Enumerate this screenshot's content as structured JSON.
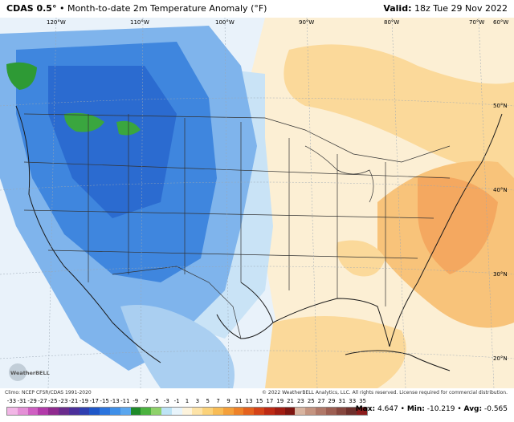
{
  "header": {
    "model": "CDAS 0.5°",
    "separator": "•",
    "product": "Month-to-date 2m Temperature Anomaly (°F)",
    "valid_label": "Valid:",
    "valid_time": "18z Tue 29 Nov 2022"
  },
  "longitude_labels": [
    "120°W",
    "110°W",
    "100°W",
    "90°W",
    "80°W",
    "70°W",
    "60°W"
  ],
  "latitude_labels": [
    "50°N",
    "40°N",
    "30°N",
    "20°N"
  ],
  "credits": {
    "climo": "Climo: NCEP CFSR/CDAS 1991-2020",
    "copyright": "© 2022 WeatherBELL Analytics, LLC. All rights reserved. License required for commercial distribution.",
    "logo_text": "WeatherBELL"
  },
  "colorbar": {
    "labels": [
      "-33",
      "-31",
      "-29",
      "-27",
      "-25",
      "-23",
      "-21",
      "-19",
      "-17",
      "-15",
      "-13",
      "-11",
      "-9",
      "-7",
      "-5",
      "-3",
      "-1",
      "1",
      "3",
      "5",
      "7",
      "9",
      "11",
      "13",
      "15",
      "17",
      "19",
      "21",
      "23",
      "25",
      "27",
      "29",
      "31",
      "33",
      "35"
    ],
    "colors": [
      "#f2b6e6",
      "#e48fd6",
      "#cf5fc2",
      "#b23aa9",
      "#8f2a8e",
      "#6a2b8c",
      "#4b2f9a",
      "#2f3fb0",
      "#1f57c8",
      "#2b74dd",
      "#3f8fe8",
      "#5aa6ee",
      "#1f8a2a",
      "#4bb23f",
      "#8fd16a",
      "#bde3f5",
      "#e8f4fb",
      "#fdf3dc",
      "#fde3a8",
      "#fbd27a",
      "#f8bc55",
      "#f4a03a",
      "#ee8228",
      "#e4621e",
      "#d44318",
      "#bd2a14",
      "#a11d12",
      "#7d1510",
      "#d8b4a0",
      "#c49480",
      "#b07868",
      "#9c5e52",
      "#86463e",
      "#6e302c",
      "#8c1c1c"
    ]
  },
  "stats": {
    "max_label": "Max:",
    "max_value": "4.647",
    "min_label": "Min:",
    "min_value": "-10.219",
    "avg_label": "Avg:",
    "avg_value": "-0.565"
  }
}
